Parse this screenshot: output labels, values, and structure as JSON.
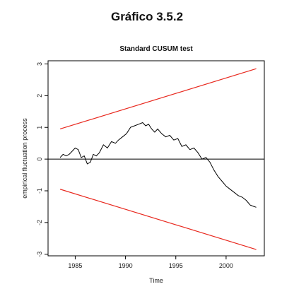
{
  "page_title": "Gráfico 3.5.2",
  "chart_data": {
    "type": "line",
    "title": "Standard CUSUM test",
    "xlabel": "Time",
    "ylabel": "empirical fluctuation process",
    "xlim": [
      1982.3,
      2003.8
    ],
    "ylim": [
      -3.05,
      3.1
    ],
    "x_ticks": [
      1985,
      1990,
      1995,
      2000
    ],
    "y_ticks": [
      -3,
      -2,
      -1,
      0,
      1,
      2,
      3
    ],
    "x_tick_labels": [
      "1985",
      "1990",
      "1995",
      "2000"
    ],
    "y_tick_labels": [
      "-3",
      "-2",
      "-1",
      "0",
      "1",
      "2",
      "3"
    ],
    "reference_line": {
      "y": 0,
      "color": "#000000"
    },
    "boundaries": [
      {
        "x": [
          1983.5,
          2003.0
        ],
        "y": [
          0.95,
          2.85
        ],
        "color": "#e8281e"
      },
      {
        "x": [
          1983.5,
          2003.0
        ],
        "y": [
          -0.95,
          -2.85
        ],
        "color": "#e8281e"
      }
    ],
    "series": [
      {
        "color": "#000000",
        "x": [
          1983.5,
          1983.8,
          1984.1,
          1984.4,
          1984.7,
          1985.0,
          1985.3,
          1985.6,
          1985.9,
          1986.2,
          1986.5,
          1986.8,
          1987.1,
          1987.4,
          1987.8,
          1988.2,
          1988.6,
          1989.0,
          1989.3,
          1989.7,
          1990.1,
          1990.5,
          1990.9,
          1991.3,
          1991.7,
          1992.0,
          1992.3,
          1992.6,
          1992.9,
          1993.2,
          1993.6,
          1994.0,
          1994.4,
          1994.8,
          1995.2,
          1995.6,
          1996.0,
          1996.4,
          1996.8,
          1997.2,
          1997.6,
          1998.0,
          1998.4,
          1998.8,
          1999.2,
          1999.6,
          2000.0,
          2000.4,
          2000.8,
          2001.2,
          2001.6,
          2002.0,
          2002.4,
          2002.8,
          2003.0
        ],
        "y": [
          0.05,
          0.15,
          0.1,
          0.15,
          0.25,
          0.35,
          0.3,
          0.05,
          0.1,
          -0.15,
          -0.1,
          0.15,
          0.1,
          0.2,
          0.45,
          0.35,
          0.55,
          0.5,
          0.6,
          0.7,
          0.8,
          1.0,
          1.05,
          1.1,
          1.15,
          1.05,
          1.1,
          0.95,
          0.85,
          0.95,
          0.8,
          0.7,
          0.75,
          0.6,
          0.65,
          0.4,
          0.45,
          0.3,
          0.35,
          0.2,
          0.0,
          0.05,
          -0.1,
          -0.35,
          -0.55,
          -0.7,
          -0.85,
          -0.95,
          -1.05,
          -1.15,
          -1.2,
          -1.3,
          -1.45,
          -1.5,
          -1.52
        ]
      }
    ]
  }
}
